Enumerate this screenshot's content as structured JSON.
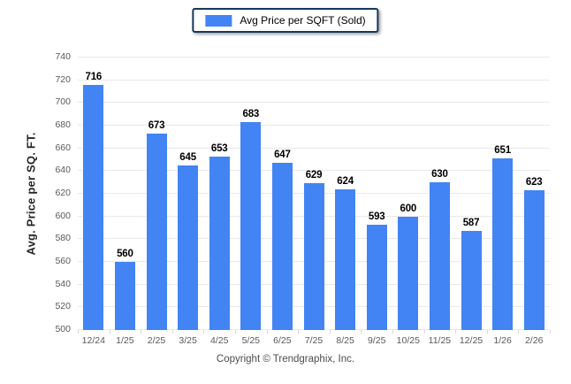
{
  "legend": {
    "label": "Avg Price per SQFT (Sold)"
  },
  "footer": {
    "text": "Copyright © Trendgraphix, Inc."
  },
  "colors": {
    "bar": "#4284f3",
    "legend_border": "#17375d",
    "grid": "#e9e9e9",
    "axis_tick_text": "#595959",
    "value_label": "#000000",
    "footer_text": "#4d4d4d",
    "tick_mark": "#d9d9d9"
  },
  "chart_data": {
    "type": "bar",
    "title": "Avg Price per SQFT (Sold)",
    "categories": [
      "12/24",
      "1/25",
      "2/25",
      "3/25",
      "4/25",
      "5/25",
      "6/25",
      "7/25",
      "8/25",
      "9/25",
      "10/25",
      "11/25",
      "12/25",
      "1/26",
      "2/26"
    ],
    "values": [
      716,
      560,
      673,
      645,
      653,
      683,
      647,
      629,
      624,
      593,
      600,
      630,
      587,
      651,
      623
    ],
    "xlabel": "",
    "ylabel": "Avg. Price per SQ. FT.",
    "ylim": [
      500,
      740
    ],
    "ytick_step": 20,
    "grid": "horizontal",
    "legend_position": "top-center",
    "bar_color": "#4284f3"
  }
}
